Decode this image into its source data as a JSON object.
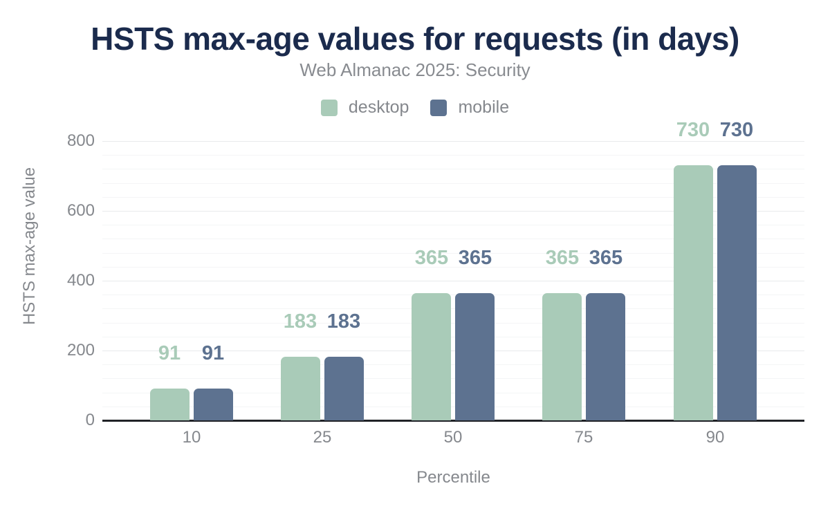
{
  "chart_data": {
    "type": "bar",
    "title": "HSTS max-age values for requests (in days)",
    "subtitle": "Web Almanac 2025: Security",
    "xlabel": "Percentile",
    "ylabel": "HSTS max-age value",
    "categories": [
      "10",
      "25",
      "50",
      "75",
      "90"
    ],
    "series": [
      {
        "name": "desktop",
        "color": "#a9cbb8",
        "values": [
          91,
          183,
          365,
          365,
          730
        ]
      },
      {
        "name": "mobile",
        "color": "#5d7290",
        "values": [
          91,
          183,
          365,
          365,
          730
        ]
      }
    ],
    "ylim": [
      0,
      800
    ],
    "yticks": [
      0,
      200,
      400,
      600,
      800
    ],
    "minor_grid_step": 40,
    "grid": "on",
    "legend_position": "top",
    "value_labels": "above-bars"
  },
  "colors": {
    "title": "#1b2b4d",
    "subtitle": "#888b90",
    "axis_text": "#85888d",
    "axis_line": "#202227",
    "grid_major": "#e8eaec",
    "grid_minor": "#f4f5f6",
    "desktop": "#a9cbb8",
    "mobile": "#5d7290"
  }
}
